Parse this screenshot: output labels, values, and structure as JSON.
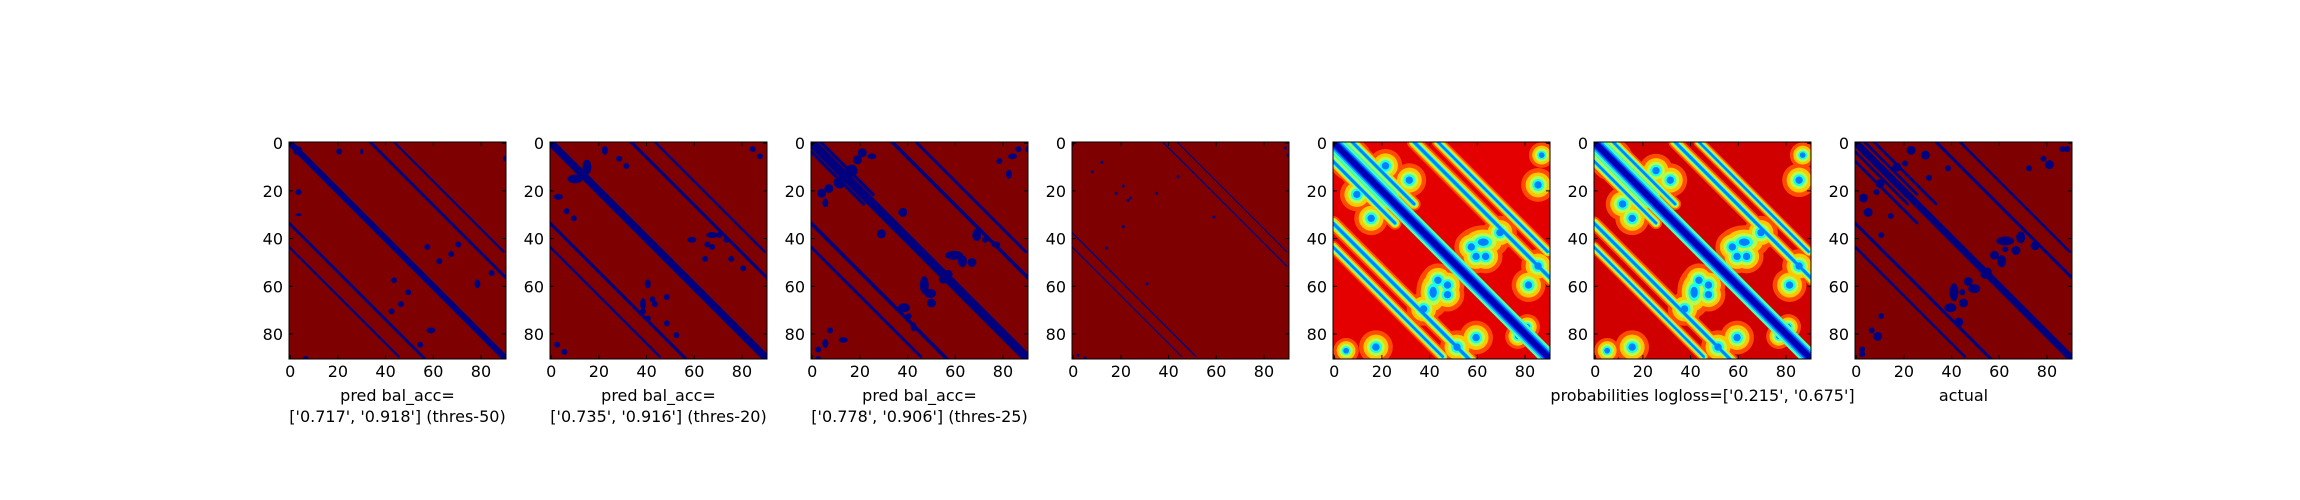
{
  "figure": {
    "colors": {
      "background": "#7f0000",
      "contact": "#00007f",
      "axis": "#000000"
    },
    "colormap": "jet"
  },
  "chart_data": [
    {
      "type": "heatmap",
      "xlabel_lines": [
        "pred bal_acc=",
        "['0.717', '0.918'] (thres-50)"
      ],
      "xlim": [
        0,
        91
      ],
      "ylim": [
        91,
        0
      ],
      "xticks": [
        0,
        20,
        40,
        60,
        80
      ],
      "yticks": [
        0,
        20,
        40,
        60,
        80
      ],
      "diagonal_width": 2.6,
      "bands": [
        [
          34,
          92,
          1.2
        ],
        [
          44,
          90,
          0.9
        ]
      ],
      "blobs": [
        [
          2,
          2,
          3,
          2
        ],
        [
          3,
          20,
          2,
          2
        ],
        [
          57,
          43,
          2,
          2
        ],
        [
          62,
          49,
          2,
          2
        ],
        [
          67,
          46,
          2,
          2
        ],
        [
          70,
          42,
          2,
          2
        ],
        [
          78,
          58,
          2,
          3
        ],
        [
          84,
          54,
          2,
          2
        ],
        [
          3,
          30,
          2,
          1
        ],
        [
          6,
          90,
          2,
          2
        ]
      ]
    },
    {
      "type": "heatmap",
      "xlabel_lines": [
        "pred bal_acc=",
        "['0.735', '0.916'] (thres-20)"
      ],
      "xlim": [
        0,
        91
      ],
      "ylim": [
        91,
        0
      ],
      "xticks": [
        0,
        20,
        40,
        60,
        80
      ],
      "yticks": [
        0,
        20,
        40,
        60,
        80
      ],
      "diagonal_width": 3.2,
      "bands": [
        [
          34,
          92,
          1.3
        ],
        [
          44,
          90,
          1.0
        ]
      ],
      "blobs": [
        [
          2,
          22,
          3,
          2
        ],
        [
          6,
          28,
          2,
          2
        ],
        [
          9,
          31,
          2,
          2
        ],
        [
          14,
          8,
          3,
          5
        ],
        [
          38,
          66,
          2,
          4
        ],
        [
          40,
          73,
          2,
          2
        ],
        [
          42,
          65,
          2,
          2
        ],
        [
          58,
          40,
          3,
          2
        ],
        [
          64,
          48,
          2,
          2
        ],
        [
          67,
          43,
          2,
          2
        ],
        [
          70,
          38,
          2,
          2
        ],
        [
          75,
          48,
          2,
          2
        ],
        [
          80,
          52,
          2,
          2
        ],
        [
          2,
          84,
          2,
          2
        ],
        [
          5,
          87,
          2,
          2
        ]
      ]
    },
    {
      "type": "heatmap",
      "xlabel_lines": [
        "pred bal_acc=",
        "['0.778', '0.906'] (thres-25)"
      ],
      "xlim": [
        0,
        91
      ],
      "ylim": [
        91,
        0
      ],
      "xticks": [
        0,
        20,
        40,
        60,
        80
      ],
      "yticks": [
        0,
        20,
        40,
        60,
        80
      ],
      "diagonal_width": 3.8,
      "bands": [
        [
          34,
          92,
          1.5
        ],
        [
          44,
          90,
          1.2
        ],
        [
          4,
          26,
          1.4
        ]
      ],
      "blobs": [
        [
          3,
          20,
          3,
          3
        ],
        [
          5,
          24,
          2,
          3
        ],
        [
          10,
          15,
          4,
          4
        ],
        [
          18,
          6,
          3,
          3
        ],
        [
          37,
          28,
          3,
          3
        ],
        [
          46,
          57,
          3,
          6
        ],
        [
          49,
          66,
          3,
          3
        ],
        [
          54,
          56,
          3,
          3
        ],
        [
          62,
          48,
          3,
          4
        ],
        [
          68,
          37,
          3,
          4
        ],
        [
          72,
          40,
          2,
          2
        ],
        [
          76,
          42,
          3,
          2
        ],
        [
          82,
          12,
          2,
          3
        ],
        [
          86,
          2,
          2,
          2
        ],
        [
          5,
          83,
          2,
          3
        ],
        [
          7,
          78,
          2,
          2
        ],
        [
          2,
          90,
          2,
          2
        ]
      ]
    },
    {
      "type": "heatmap",
      "xlabel_lines": [],
      "xlim": [
        0,
        91
      ],
      "ylim": [
        91,
        0
      ],
      "xticks": [
        0,
        20,
        40,
        60,
        80
      ],
      "yticks": [
        0,
        20,
        40,
        60,
        80
      ],
      "diagonal_width": 0,
      "bands": [
        [
          38,
          90,
          0.55
        ],
        [
          44,
          90,
          0.5
        ]
      ],
      "blobs": [
        [
          12,
          8,
          1,
          1
        ],
        [
          18,
          21,
          1,
          1
        ],
        [
          21,
          35,
          1,
          1
        ],
        [
          14,
          44,
          1,
          1
        ],
        [
          24,
          23,
          1,
          1
        ],
        [
          31,
          59,
          1,
          1
        ],
        [
          2,
          89,
          1,
          1
        ],
        [
          5,
          90,
          1,
          1
        ]
      ]
    },
    {
      "type": "heatmap",
      "colormap": "jet",
      "xlabel_lines": [],
      "xlim": [
        0,
        91
      ],
      "ylim": [
        91,
        0
      ],
      "xticks": [
        0,
        20,
        40,
        60,
        80
      ],
      "yticks": [
        0,
        20,
        40,
        60,
        80
      ],
      "diagonal_width": 3.0,
      "bands": [
        [
          34,
          92,
          1.3
        ],
        [
          44,
          90,
          1.1
        ],
        [
          4,
          26,
          1.2
        ],
        [
          8,
          34,
          1.2
        ]
      ],
      "blobs": [
        [
          5,
          5,
          5,
          5
        ],
        [
          8,
          20,
          4,
          4
        ],
        [
          14,
          30,
          4,
          4
        ],
        [
          40,
          60,
          4,
          6
        ],
        [
          46,
          58,
          4,
          4
        ],
        [
          56,
          42,
          4,
          4
        ],
        [
          62,
          46,
          4,
          4
        ],
        [
          68,
          36,
          4,
          4
        ],
        [
          80,
          58,
          4,
          4
        ],
        [
          84,
          50,
          4,
          4
        ],
        [
          4,
          86,
          3,
          3
        ],
        [
          86,
          4,
          3,
          3
        ],
        [
          84,
          16,
          4,
          4
        ],
        [
          76,
          80,
          3,
          3
        ]
      ],
      "heat_bg": 0.1
    },
    {
      "type": "heatmap",
      "colormap": "jet",
      "xlabel_lines": [
        "probabilities logloss=['0.215', '0.675']"
      ],
      "xlim": [
        0,
        91
      ],
      "ylim": [
        91,
        0
      ],
      "xticks": [
        0,
        20,
        40,
        60,
        80
      ],
      "yticks": [
        0,
        20,
        40,
        60,
        80
      ],
      "diagonal_width": 2.6,
      "bands": [
        [
          34,
          92,
          1.2
        ],
        [
          44,
          90,
          1.0
        ],
        [
          4,
          26,
          1.1
        ],
        [
          8,
          34,
          1.1
        ]
      ],
      "blobs": [
        [
          5,
          5,
          5,
          5
        ],
        [
          10,
          24,
          4,
          4
        ],
        [
          14,
          30,
          4,
          4
        ],
        [
          40,
          60,
          4,
          6
        ],
        [
          46,
          58,
          4,
          4
        ],
        [
          56,
          42,
          4,
          4
        ],
        [
          62,
          46,
          4,
          4
        ],
        [
          68,
          36,
          4,
          4
        ],
        [
          80,
          58,
          4,
          4
        ],
        [
          84,
          50,
          4,
          4
        ],
        [
          4,
          86,
          3,
          3
        ],
        [
          86,
          4,
          3,
          3
        ],
        [
          84,
          14,
          4,
          4
        ],
        [
          76,
          80,
          3,
          3
        ]
      ],
      "heat_bg": 0.08
    },
    {
      "type": "heatmap",
      "xlabel_lines": [
        "actual"
      ],
      "xlim": [
        0,
        91
      ],
      "ylim": [
        91,
        0
      ],
      "xticks": [
        0,
        20,
        40,
        60,
        80
      ],
      "yticks": [
        0,
        20,
        40,
        60,
        80
      ],
      "diagonal_width": 3.0,
      "bands": [
        [
          34,
          92,
          1.3
        ],
        [
          44,
          90,
          1.1
        ],
        [
          4,
          26,
          1.2
        ],
        [
          8,
          34,
          1.2
        ]
      ],
      "blobs": [
        [
          2,
          22,
          3,
          3
        ],
        [
          4,
          28,
          3,
          3
        ],
        [
          9,
          16,
          3,
          3
        ],
        [
          10,
          38,
          2,
          2
        ],
        [
          14,
          30,
          2,
          2
        ],
        [
          20,
          8,
          2,
          2
        ],
        [
          40,
          60,
          3,
          6
        ],
        [
          44,
          66,
          3,
          3
        ],
        [
          46,
          57,
          3,
          3
        ],
        [
          53,
          54,
          3,
          3
        ],
        [
          60,
          48,
          3,
          4
        ],
        [
          62,
          44,
          2,
          2
        ],
        [
          68,
          38,
          3,
          4
        ],
        [
          74,
          42,
          3,
          3
        ],
        [
          80,
          8,
          3,
          3
        ],
        [
          86,
          2,
          2,
          2
        ],
        [
          10,
          72,
          2,
          2
        ],
        [
          6,
          78,
          2,
          2
        ],
        [
          2,
          88,
          2,
          2
        ]
      ]
    }
  ]
}
